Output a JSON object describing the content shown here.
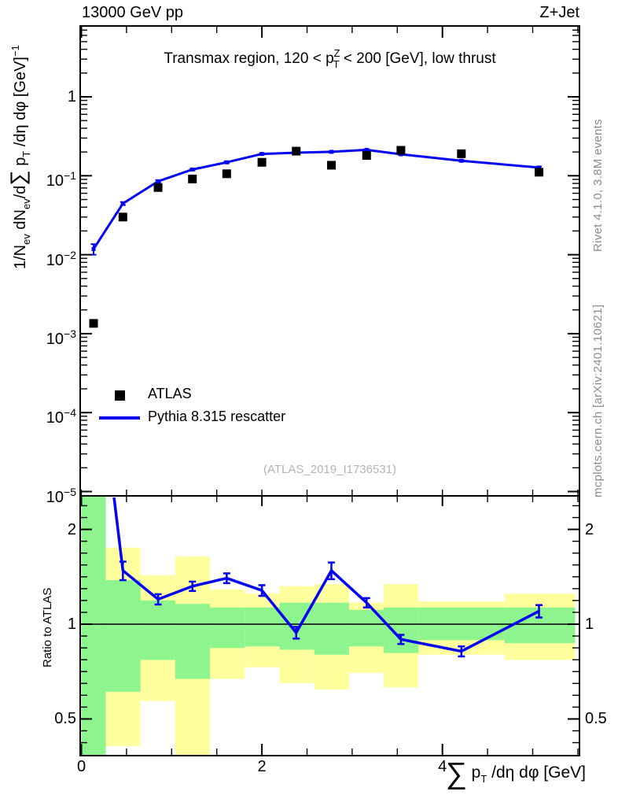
{
  "header": {
    "left": "13000 GeV pp",
    "right": "Z+Jet"
  },
  "panel_title": {
    "segments": [
      {
        "t": "Transmax region, 120 < p"
      },
      {
        "t": "Z",
        "style": "sup2"
      },
      {
        "t": "T",
        "style": "sub2"
      },
      {
        "t": " < 200 [GeV], low thrust"
      }
    ]
  },
  "y_axis_title": {
    "segments": [
      {
        "t": "1/N"
      },
      {
        "t": "ev",
        "style": "sub"
      },
      {
        "t": " dN"
      },
      {
        "t": "ev",
        "style": "sub"
      },
      {
        "t": "/d"
      },
      {
        "t": "∑",
        "style": "sum"
      },
      {
        "t": " p"
      },
      {
        "t": "T",
        "style": "sub"
      },
      {
        "t": " /dη dφ  [GeV]"
      },
      {
        "t": "−1",
        "style": "sup"
      }
    ]
  },
  "x_axis_title": {
    "segments": [
      {
        "t": "∑",
        "style": "sum"
      },
      {
        "t": " p"
      },
      {
        "t": "T",
        "style": "sub"
      },
      {
        "t": " /dη dφ [GeV]"
      }
    ]
  },
  "legend": {
    "items": [
      {
        "label": "ATLAS",
        "marker": "black-square"
      },
      {
        "label": "Pythia 8.315 rescatter",
        "marker": "blue-line"
      }
    ]
  },
  "watermark": "(ATLAS_2019_I1736531)",
  "side_notes": {
    "top": "Rivet 4.1.0,  3.8M events",
    "bottom": "mcplots.cern.ch [arXiv:2401.10621]"
  },
  "ratio_axis_label": "Ratio to ATLAS",
  "colors": {
    "line_blue": "#0202f2",
    "marker_black": "#000000",
    "band_green": "#8ef58e",
    "band_yellow": "#ffff9e",
    "note_gray": "#8c8c8c",
    "watermark_gray": "#b4b4b4"
  },
  "chart_data": {
    "type": "scatter+line with ratio subpanel",
    "title": "Transmax region, 120 < pT^Z < 200 [GeV], low thrust",
    "xlabel": "sum pT /deta dphi [GeV]",
    "ylabel": "1/N_ev dN_ev/d sum pT /deta dphi [GeV]^-1",
    "xlim": [
      0,
      5.52
    ],
    "main_ylog": true,
    "main_ylim": [
      1e-05,
      7.9
    ],
    "x": [
      0.135,
      0.46,
      0.85,
      1.23,
      1.61,
      2.0,
      2.38,
      2.77,
      3.16,
      3.54,
      4.21,
      5.07
    ],
    "series": [
      {
        "name": "ATLAS",
        "type": "scatter",
        "marker": "filled-square",
        "color": "#000000",
        "values": [
          0.00135,
          0.03,
          0.071,
          0.091,
          0.106,
          0.148,
          0.205,
          0.136,
          0.181,
          0.21,
          0.19,
          0.111
        ]
      },
      {
        "name": "Pythia 8.315 rescatter",
        "type": "line",
        "color": "#0202f2",
        "values": [
          0.0118,
          0.0445,
          0.085,
          0.12,
          0.148,
          0.189,
          0.196,
          0.201,
          0.213,
          0.187,
          0.155,
          0.127
        ],
        "errors": [
          0.0018,
          0.002,
          0.003,
          0.003,
          0.004,
          0.004,
          0.004,
          0.004,
          0.004,
          0.004,
          0.004,
          0.004
        ]
      }
    ],
    "main_y_ticks": [
      {
        "v": 1,
        "t": "1"
      },
      {
        "v": 0.1,
        "mant": "10",
        "exp": "−1"
      },
      {
        "v": 0.01,
        "mant": "10",
        "exp": "−2"
      },
      {
        "v": 0.001,
        "mant": "10",
        "exp": "−3"
      },
      {
        "v": 0.0001,
        "mant": "10",
        "exp": "−4"
      },
      {
        "v": 1e-05,
        "mant": "10",
        "exp": "−5"
      }
    ],
    "x_ticks": [
      {
        "v": 0,
        "t": "0"
      },
      {
        "v": 2,
        "t": "2"
      },
      {
        "v": 4,
        "t": "4"
      }
    ],
    "ratio": {
      "ylog": true,
      "ylim": [
        0.38,
        2.56
      ],
      "x": [
        0.46,
        0.85,
        1.23,
        1.61,
        2.0,
        2.38,
        2.77,
        3.16,
        3.54,
        4.21,
        5.07
      ],
      "values": [
        1.48,
        1.2,
        1.32,
        1.4,
        1.28,
        0.94,
        1.48,
        1.17,
        0.895,
        0.82,
        1.1
      ],
      "errors": [
        0.1,
        0.045,
        0.045,
        0.05,
        0.05,
        0.04,
        0.09,
        0.04,
        0.03,
        0.03,
        0.05
      ],
      "entry_point": {
        "x": 0.135,
        "r": 8.7
      },
      "ticks": [
        {
          "r": 2,
          "t": "2"
        },
        {
          "r": 1,
          "t": "1"
        },
        {
          "r": 0.5,
          "t": "0.5"
        }
      ],
      "bands": {
        "edges": [
          0,
          0.27,
          0.655,
          1.04,
          1.425,
          1.81,
          2.195,
          2.58,
          2.965,
          3.35,
          3.735,
          4.69,
          5.47
        ],
        "yellow": [
          [
            0.37,
            2.6
          ],
          [
            0.41,
            1.75
          ],
          [
            0.57,
            1.43
          ],
          [
            0.38,
            1.64
          ],
          [
            0.67,
            1.29
          ],
          [
            0.73,
            1.25
          ],
          [
            0.65,
            1.32
          ],
          [
            0.62,
            1.34
          ],
          [
            0.7,
            1.17
          ],
          [
            0.63,
            1.34
          ],
          [
            0.8,
            1.18
          ],
          [
            0.77,
            1.25
          ]
        ],
        "green": [
          [
            0.37,
            2.6
          ],
          [
            0.61,
            1.38
          ],
          [
            0.77,
            1.19
          ],
          [
            0.67,
            1.16
          ],
          [
            0.84,
            1.13
          ],
          [
            0.85,
            1.13
          ],
          [
            0.83,
            1.17
          ],
          [
            0.8,
            1.17
          ],
          [
            0.85,
            1.11
          ],
          [
            0.81,
            1.13
          ],
          [
            0.89,
            1.13
          ],
          [
            0.87,
            1.13
          ]
        ]
      }
    }
  }
}
